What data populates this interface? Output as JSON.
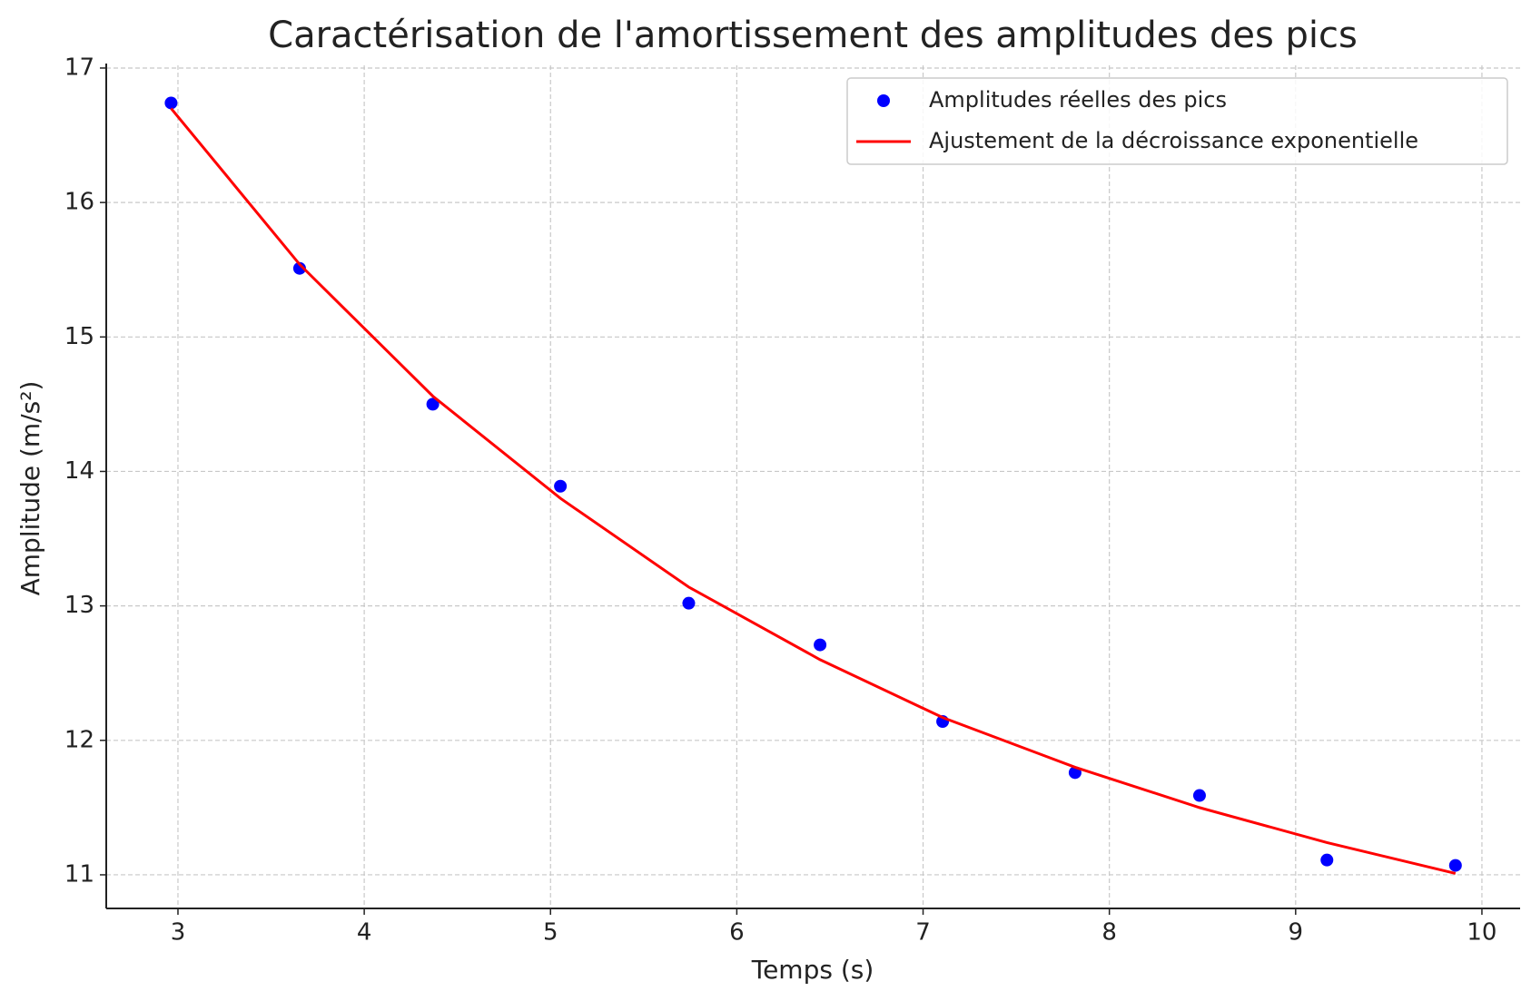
{
  "chart_data": {
    "type": "scatter_line",
    "title": "Caractérisation de l'amortissement des amplitudes des pics",
    "x_label": "Temps (s)",
    "y_label": "Amplitude (m/s²)",
    "x": [
      2.963,
      3.653,
      4.368,
      5.053,
      5.742,
      6.447,
      7.105,
      7.816,
      8.484,
      9.168,
      9.858
    ],
    "series": [
      {
        "name": "Amplitudes réelles des pics",
        "color": "#0000ff",
        "style": "points",
        "values": [
          16.74,
          15.51,
          14.5,
          13.89,
          13.02,
          12.71,
          12.14,
          11.76,
          11.59,
          11.11,
          11.07
        ]
      },
      {
        "name": "Ajustement de la décroissance exponentielle",
        "color": "#ff0000",
        "style": "line",
        "values": [
          16.7,
          15.54,
          14.56,
          13.8,
          13.14,
          12.6,
          12.17,
          11.8,
          11.5,
          11.24,
          11.01
        ]
      }
    ],
    "xlim": [
      2.615,
      10.205
    ],
    "xticks": [
      3,
      4,
      5,
      6,
      7,
      8,
      9,
      10
    ],
    "ylim": [
      10.75,
      17.02
    ],
    "yticks": [
      11,
      12,
      13,
      14,
      15,
      16,
      17
    ],
    "grid": true,
    "legend": "upper right"
  }
}
